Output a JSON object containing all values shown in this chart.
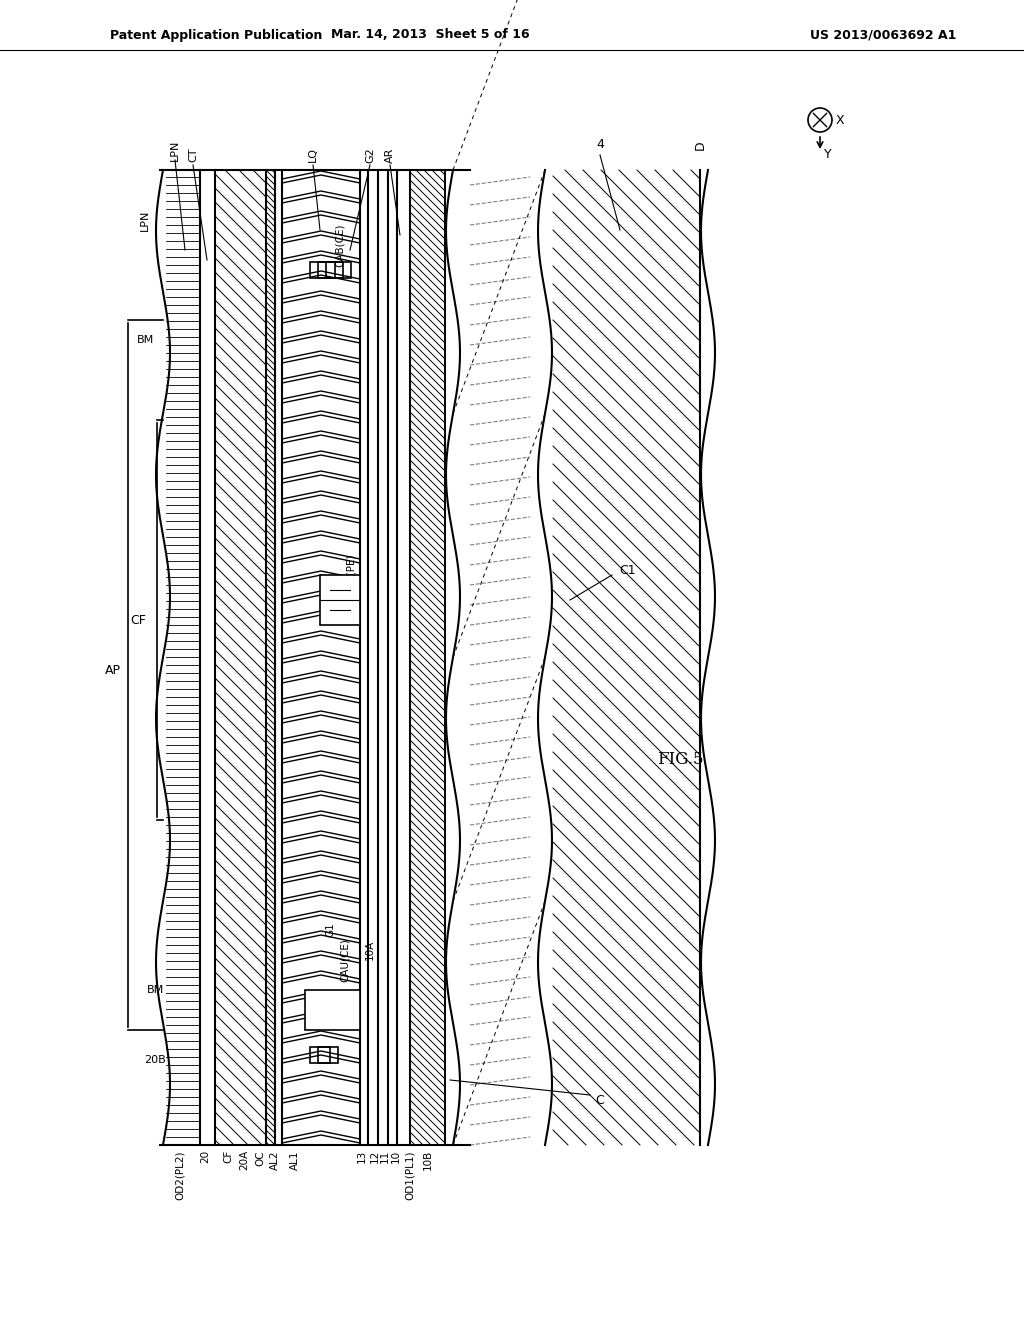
{
  "title": "FIG.5",
  "header_left": "Patent Application Publication",
  "header_mid": "Mar. 14, 2013  Sheet 5 of 16",
  "header_right": "US 2013/0063692 A1",
  "bg_color": "#ffffff",
  "line_color": "#000000",
  "hatch_color": "#000000"
}
